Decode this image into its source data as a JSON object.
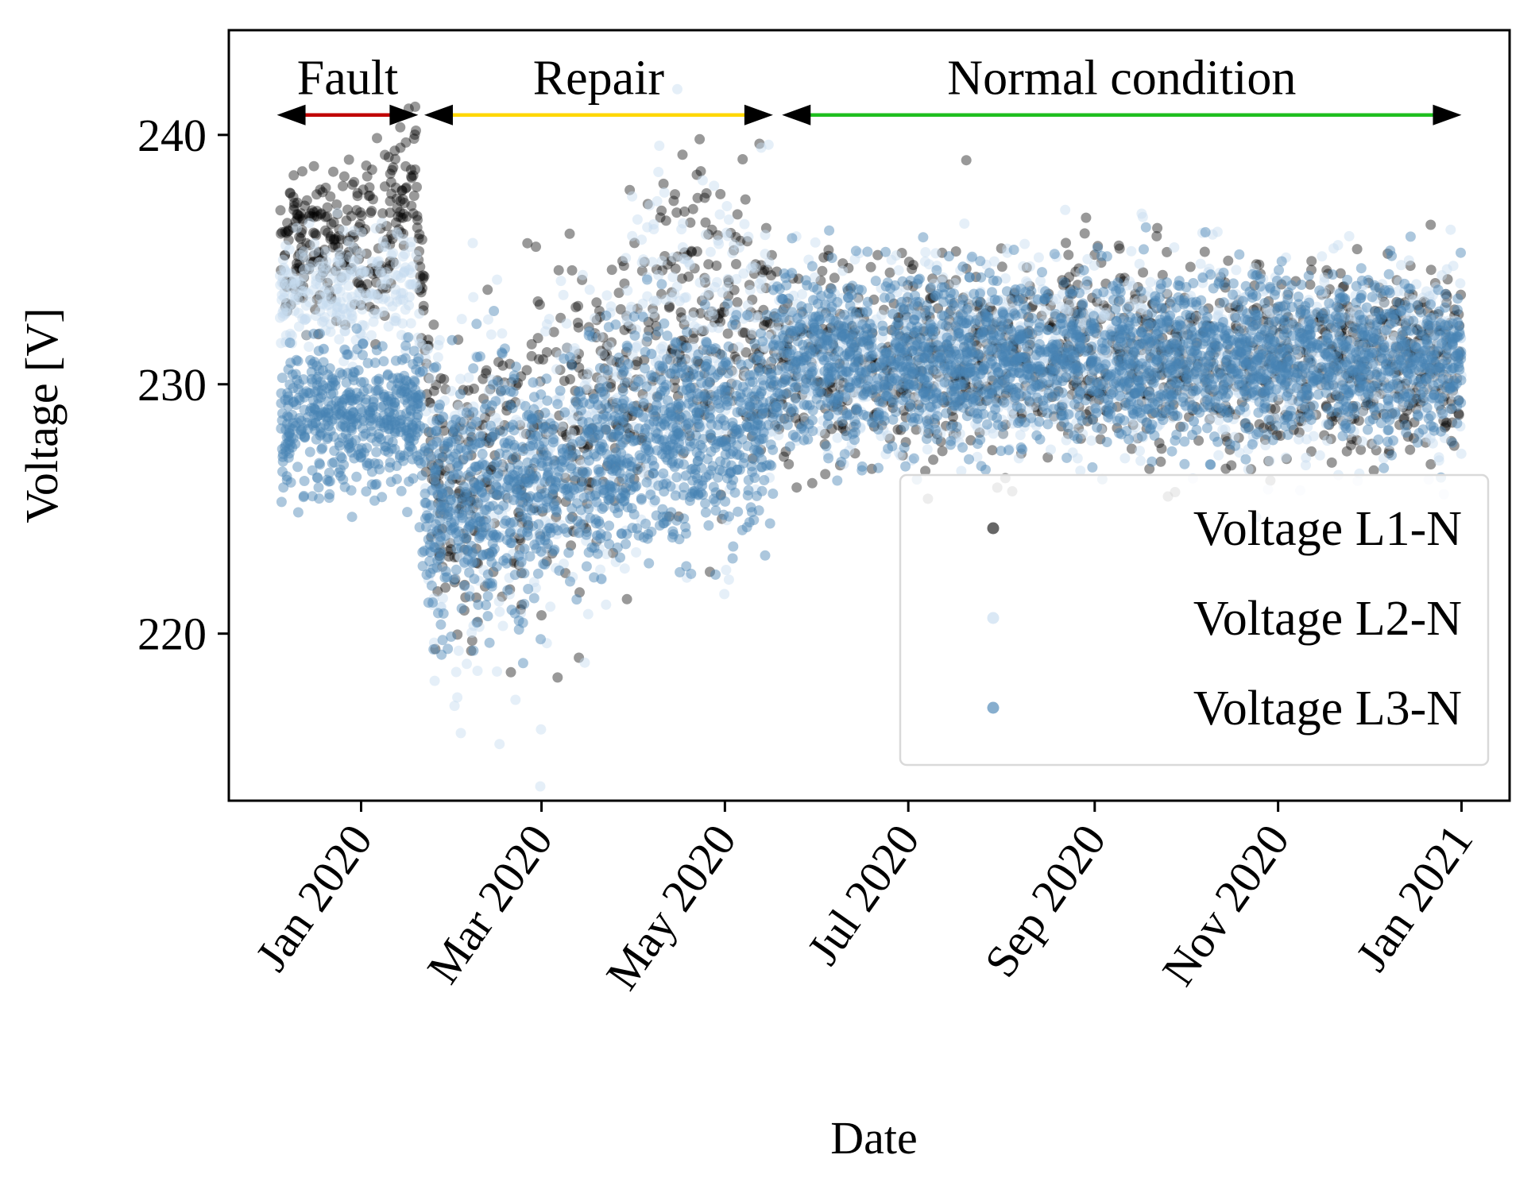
{
  "chart_data": {
    "type": "scatter",
    "title": "",
    "xlabel": "Date",
    "ylabel": "Voltage [V]",
    "xlim": [
      "2019-11-18",
      "2021-01-17"
    ],
    "ylim": [
      213.3,
      244.2
    ],
    "grid": false,
    "legend_position": "lower-right",
    "yticks": [
      {
        "value": 220,
        "label": "220"
      },
      {
        "value": 230,
        "label": "230"
      },
      {
        "value": 240,
        "label": "240"
      }
    ],
    "xticks": [
      {
        "date": "2020-01-01",
        "label": "Jan 2020"
      },
      {
        "date": "2020-03-01",
        "label": "Mar 2020"
      },
      {
        "date": "2020-05-01",
        "label": "May 2020"
      },
      {
        "date": "2020-07-01",
        "label": "Jul 2020"
      },
      {
        "date": "2020-09-01",
        "label": "Sep 2020"
      },
      {
        "date": "2020-11-01",
        "label": "Nov 2020"
      },
      {
        "date": "2021-01-01",
        "label": "Jan 2021"
      }
    ],
    "phases": [
      {
        "label": "Fault",
        "start": "2019-12-04",
        "end": "2020-01-20",
        "color": "#c00000"
      },
      {
        "label": "Repair",
        "start": "2020-01-22",
        "end": "2020-05-17",
        "color": "#ffd700"
      },
      {
        "label": "Normal condition",
        "start": "2020-05-20",
        "end": "2021-01-01",
        "color": "#1fbf1f"
      }
    ],
    "phase_arrow_y": 240.8,
    "series": [
      {
        "name": "Voltage L1-N",
        "color": "#000000",
        "opacity": 0.4,
        "profile": [
          {
            "date": "2019-12-05",
            "mean": 235.5,
            "spread": 2.2
          },
          {
            "date": "2020-01-10",
            "mean": 235.8,
            "spread": 2.3
          },
          {
            "date": "2020-01-19",
            "mean": 239.0,
            "spread": 1.2
          },
          {
            "date": "2020-01-25",
            "mean": 226.0,
            "spread": 4.0
          },
          {
            "date": "2020-02-20",
            "mean": 226.5,
            "spread": 4.5
          },
          {
            "date": "2020-03-15",
            "mean": 228.0,
            "spread": 4.5
          },
          {
            "date": "2020-04-10",
            "mean": 233.0,
            "spread": 4.0
          },
          {
            "date": "2020-05-15",
            "mean": 232.0,
            "spread": 4.0
          },
          {
            "date": "2020-05-20",
            "mean": 231.0,
            "spread": 2.6
          },
          {
            "date": "2020-09-01",
            "mean": 231.0,
            "spread": 2.6
          },
          {
            "date": "2021-01-01",
            "mean": 231.0,
            "spread": 2.5
          }
        ]
      },
      {
        "name": "Voltage L2-N",
        "color": "#c6dbef",
        "opacity": 0.45,
        "profile": [
          {
            "date": "2019-12-05",
            "mean": 233.5,
            "spread": 1.6
          },
          {
            "date": "2020-01-19",
            "mean": 234.0,
            "spread": 1.6
          },
          {
            "date": "2020-01-25",
            "mean": 225.5,
            "spread": 4.5
          },
          {
            "date": "2020-03-01",
            "mean": 226.0,
            "spread": 5.0
          },
          {
            "date": "2020-04-10",
            "mean": 231.5,
            "spread": 5.0
          },
          {
            "date": "2020-05-15",
            "mean": 231.0,
            "spread": 4.5
          },
          {
            "date": "2020-05-20",
            "mean": 231.0,
            "spread": 2.6
          },
          {
            "date": "2021-01-01",
            "mean": 231.0,
            "spread": 2.6
          }
        ]
      },
      {
        "name": "Voltage L3-N",
        "color": "#4682b4",
        "opacity": 0.45,
        "profile": [
          {
            "date": "2019-12-05",
            "mean": 228.8,
            "spread": 2.0
          },
          {
            "date": "2020-01-19",
            "mean": 228.5,
            "spread": 2.0
          },
          {
            "date": "2020-01-25",
            "mean": 225.0,
            "spread": 3.5
          },
          {
            "date": "2020-03-01",
            "mean": 226.0,
            "spread": 3.2
          },
          {
            "date": "2020-04-15",
            "mean": 228.0,
            "spread": 3.0
          },
          {
            "date": "2020-05-15",
            "mean": 228.5,
            "spread": 2.8
          },
          {
            "date": "2020-05-20",
            "mean": 231.0,
            "spread": 2.3
          },
          {
            "date": "2021-01-01",
            "mean": 231.0,
            "spread": 2.2
          }
        ]
      }
    ]
  }
}
